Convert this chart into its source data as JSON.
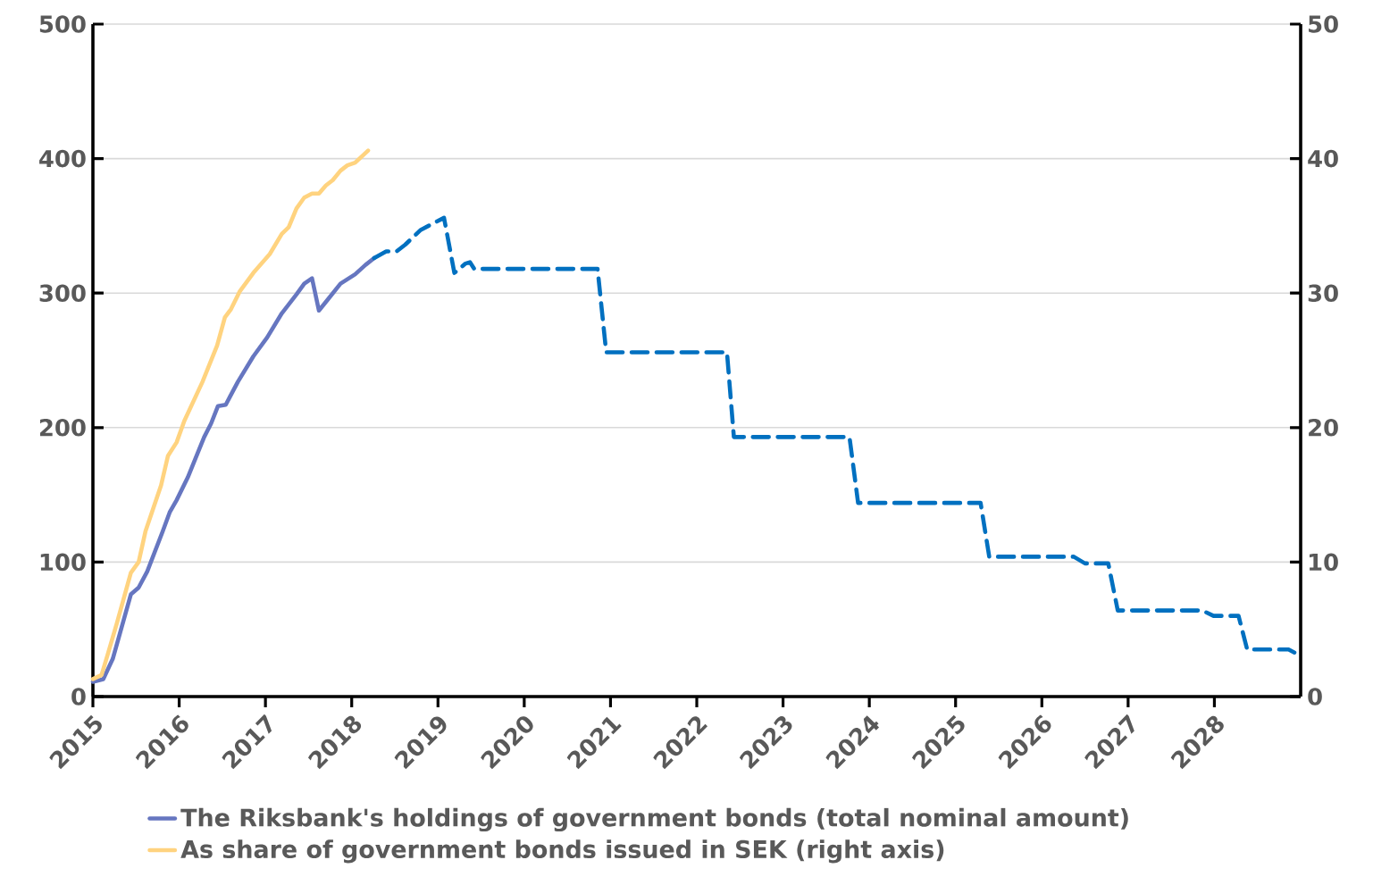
{
  "chart_data": {
    "type": "line",
    "xlim": [
      2015,
      2029
    ],
    "xticks": [
      2015,
      2016,
      2017,
      2018,
      2019,
      2020,
      2021,
      2022,
      2023,
      2024,
      2025,
      2026,
      2027,
      2028
    ],
    "ylim": [
      0,
      500
    ],
    "yticks": [
      0,
      100,
      200,
      300,
      400,
      500
    ],
    "y2lim": [
      0,
      50
    ],
    "y2ticks": [
      0,
      10,
      20,
      30,
      40,
      50
    ],
    "grid": "y",
    "legend": "bottom",
    "series": [
      {
        "name": "The Riksbank's holdings of government bonds (total nominal amount)",
        "color": "#6676c0",
        "axis": "y",
        "x": [
          2015.0,
          2015.12,
          2015.23,
          2015.44,
          2015.53,
          2015.63,
          2015.81,
          2015.89,
          2015.97,
          2016.1,
          2016.29,
          2016.37,
          2016.45,
          2016.54,
          2016.68,
          2016.86,
          2017.02,
          2017.19,
          2017.36,
          2017.45,
          2017.54,
          2017.62,
          2017.72,
          2017.87,
          2018.04,
          2018.16,
          2018.26
        ],
        "values": [
          11,
          13,
          28,
          76,
          81,
          93,
          123,
          137,
          146,
          163,
          193,
          203,
          216,
          217,
          234,
          253,
          267,
          285,
          299,
          307,
          311,
          287,
          295,
          307,
          314,
          321,
          326
        ]
      },
      {
        "color": "#0070c0",
        "axis": "y",
        "line_style": "dashed",
        "x": [
          2018.26,
          2018.4,
          2018.52,
          2018.62,
          2018.8,
          2018.92,
          2019.07,
          2019.19,
          2019.32,
          2019.37,
          2019.42,
          2020.85,
          2020.95,
          2022.35,
          2022.43,
          2023.77,
          2023.87,
          2025.29,
          2025.39,
          2026.37,
          2026.5,
          2026.77,
          2026.88,
          2027.86,
          2027.99,
          2028.28,
          2028.38,
          2028.86,
          2028.98
        ],
        "values": [
          326,
          331,
          331,
          336,
          347,
          351,
          356,
          315,
          322,
          323,
          318,
          318,
          256,
          256,
          193,
          193,
          144,
          144,
          104,
          104,
          99,
          99,
          64,
          64,
          60,
          60,
          35,
          35,
          31
        ]
      },
      {
        "name": "As share of government bonds issued in SEK (right axis)",
        "color": "#ffd37f",
        "axis": "y2",
        "x": [
          2015.0,
          2015.1,
          2015.17,
          2015.28,
          2015.44,
          2015.53,
          2015.61,
          2015.79,
          2015.87,
          2015.97,
          2016.06,
          2016.27,
          2016.44,
          2016.53,
          2016.6,
          2016.7,
          2016.86,
          2017.05,
          2017.19,
          2017.27,
          2017.36,
          2017.45,
          2017.54,
          2017.62,
          2017.7,
          2017.78,
          2017.87,
          2017.95,
          2018.04,
          2018.19
        ],
        "values": [
          1.3,
          1.6,
          3.1,
          5.5,
          9.2,
          10.0,
          12.3,
          15.7,
          17.9,
          18.9,
          20.5,
          23.4,
          26.1,
          28.2,
          28.8,
          30.1,
          31.5,
          32.9,
          34.4,
          34.9,
          36.3,
          37.1,
          37.4,
          37.4,
          38.0,
          38.4,
          39.1,
          39.5,
          39.7,
          40.6
        ]
      }
    ]
  }
}
